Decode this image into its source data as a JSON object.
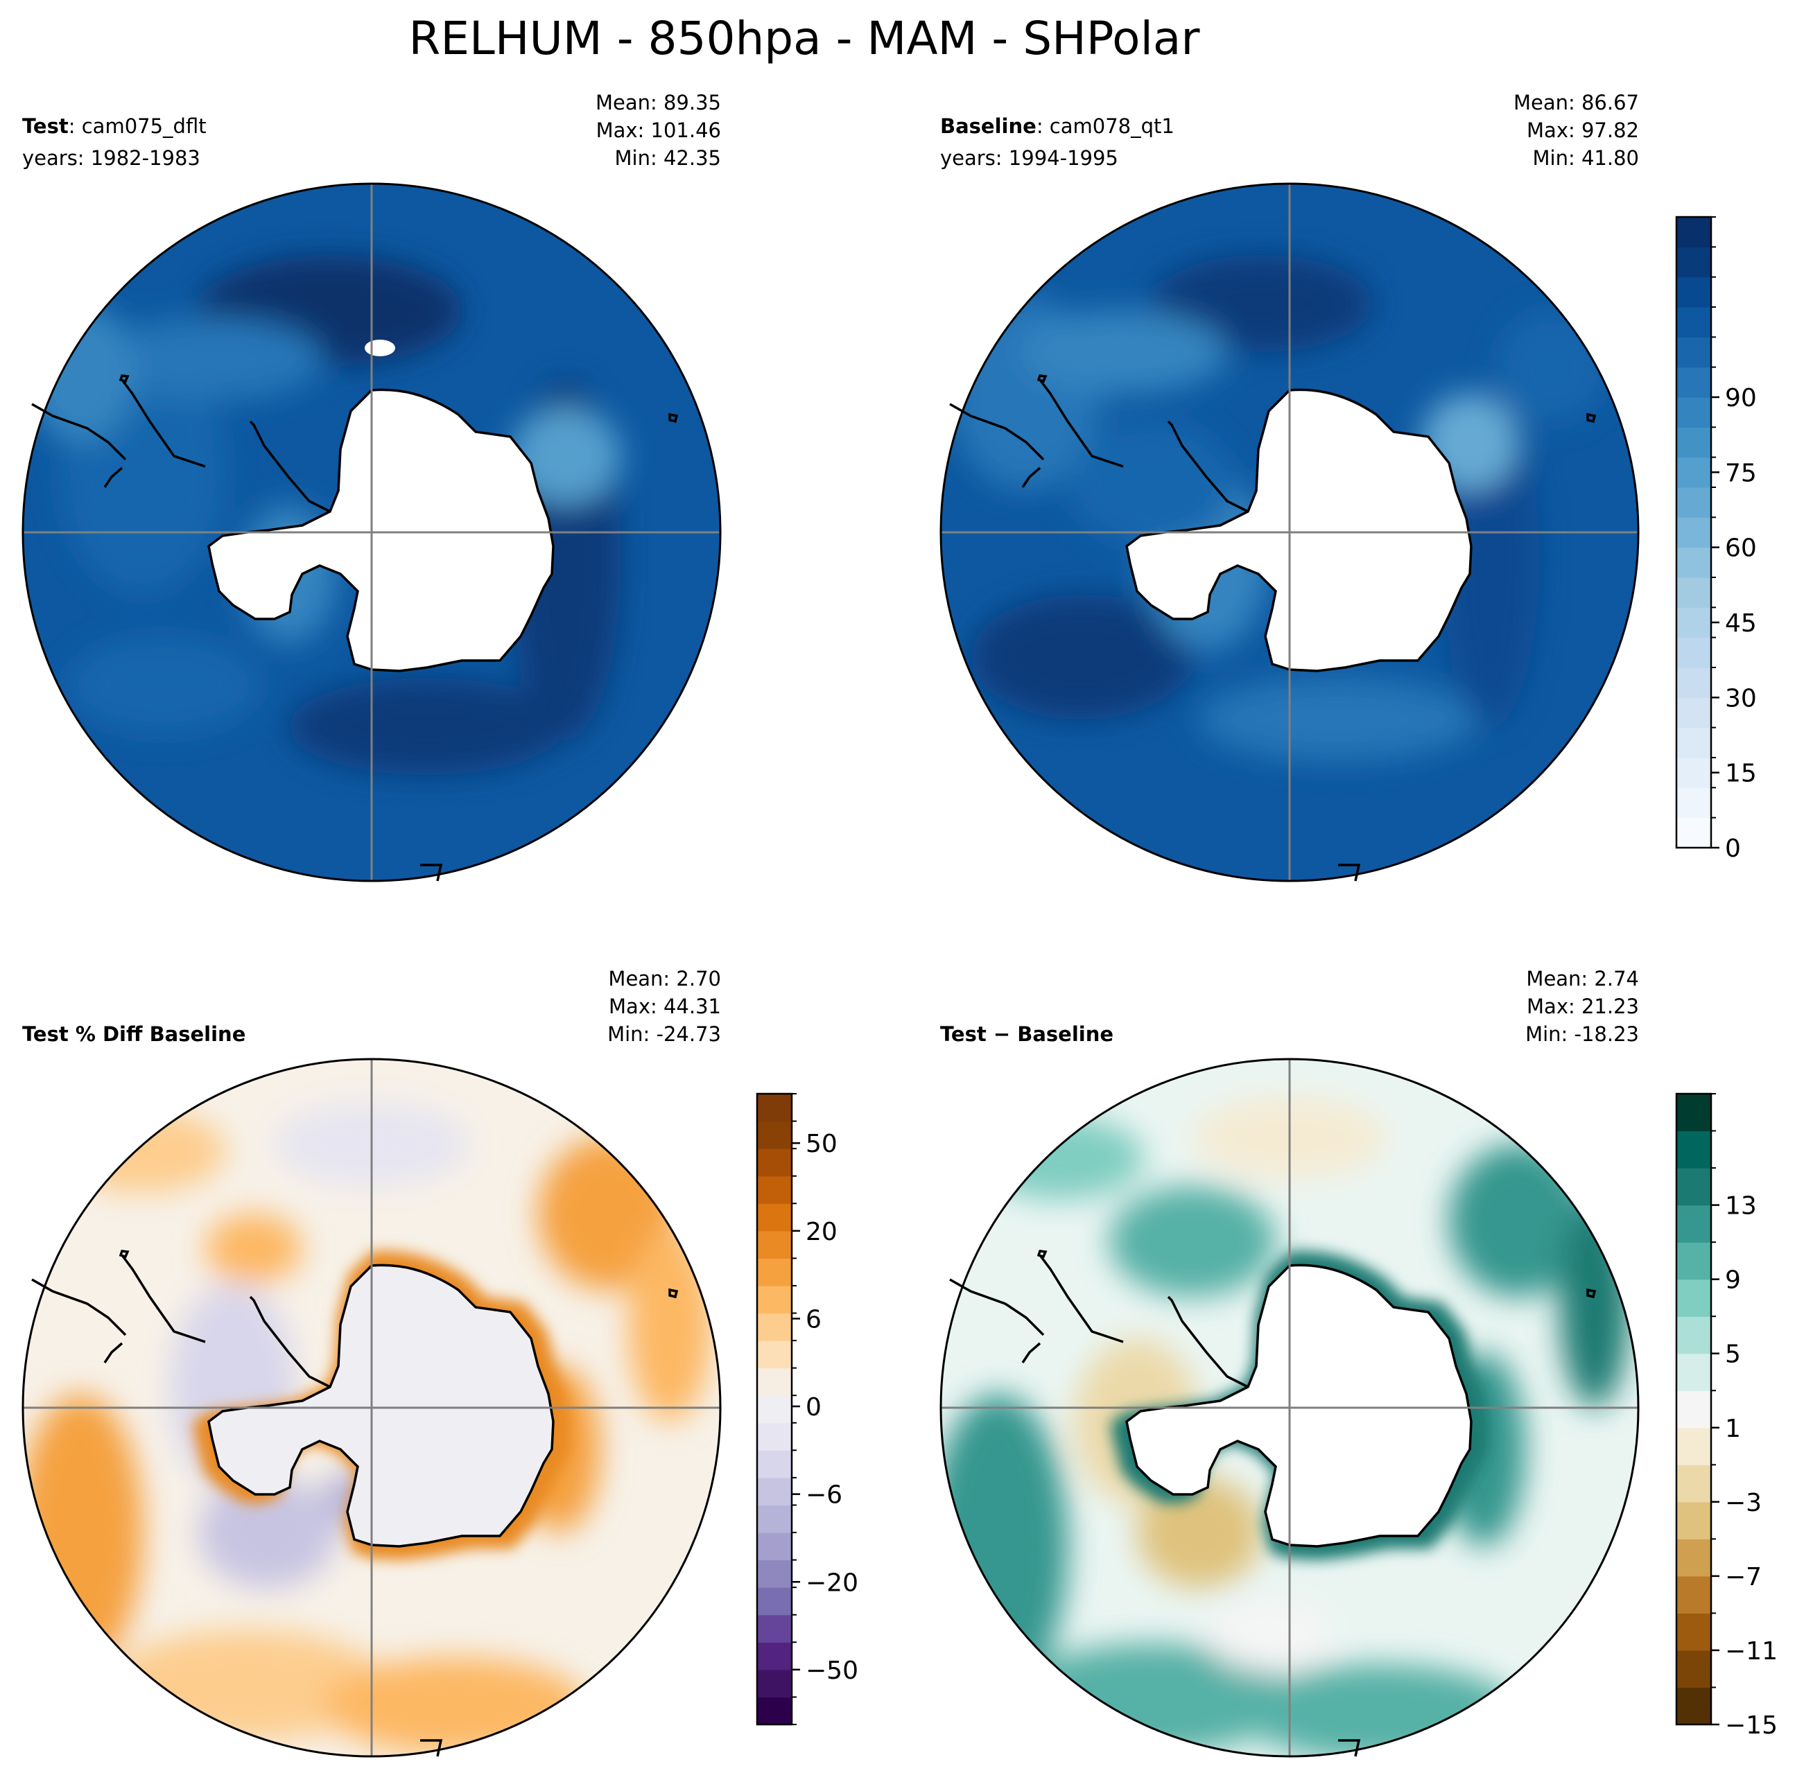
{
  "figure": {
    "title": "RELHUM - 850hpa - MAM - SHPolar"
  },
  "panels": [
    {
      "id": "test",
      "label_bold": "Test",
      "label_rest": ": cam075_dflt",
      "years": "years: 1982-1983",
      "mean": "Mean: 89.35",
      "max": "Max: 101.46",
      "min": "Min: 42.35",
      "palette": "blues"
    },
    {
      "id": "baseline",
      "label_bold": "Baseline",
      "label_rest": ": cam078_qt1",
      "years": "years: 1994-1995",
      "mean": "Mean: 86.67",
      "max": "Max: 97.82",
      "min": "Min: 41.80",
      "palette": "blues"
    },
    {
      "id": "pctdiff",
      "label_bold": "Test % Diff Baseline",
      "label_rest": "",
      "years": "",
      "mean": "Mean:  2.70",
      "max": "Max: 44.31",
      "min": "Min: -24.73",
      "palette": "puor"
    },
    {
      "id": "diff",
      "label_bold": "Test − Baseline",
      "label_rest": "",
      "years": "",
      "mean": "Mean:  2.74",
      "max": "Max: 21.23",
      "min": "Min: -18.23",
      "palette": "brbg"
    }
  ],
  "colorbars": [
    {
      "id": "cb-relhum",
      "ticks": [
        "0",
        "15",
        "30",
        "45",
        "60",
        "75",
        "90"
      ],
      "colors": [
        "#f7fbff",
        "#eef5fc",
        "#e5eff9",
        "#dce9f6",
        "#d3e3f3",
        "#c9ddf0",
        "#bdd7ee",
        "#b0d2e8",
        "#a2cbe2",
        "#8fc2de",
        "#7ab6d9",
        "#66aad4",
        "#549fcd",
        "#4292c6",
        "#3484bf",
        "#2676b8",
        "#1966ad",
        "#0d58a1",
        "#084a91",
        "#083b7a",
        "#08306b"
      ]
    },
    {
      "id": "cb-pctdiff",
      "ticks": [
        "−50",
        "−20",
        "−6",
        "0",
        "6",
        "20",
        "50"
      ],
      "colors": [
        "#2d004b",
        "#3f1364",
        "#52237f",
        "#65459a",
        "#796fb0",
        "#8e88bf",
        "#a49fcd",
        "#b6b3d8",
        "#c7c4e2",
        "#d8d6eb",
        "#e6e5f1",
        "#eeeef3",
        "#f6eee3",
        "#fddfb7",
        "#fdcd8e",
        "#fdb863",
        "#f5a13f",
        "#e98a24",
        "#da7510",
        "#c2600a",
        "#a74e06",
        "#8a4106",
        "#7f3b08"
      ]
    },
    {
      "id": "cb-diff",
      "ticks": [
        "−15",
        "−11",
        "−7",
        "−3",
        "1",
        "5",
        "9",
        "13"
      ],
      "colors": [
        "#543005",
        "#7a4507",
        "#9c5b0f",
        "#b97b29",
        "#cfa050",
        "#dfc27d",
        "#ecd9a9",
        "#f5ebd3",
        "#f5f5f5",
        "#d5eee9",
        "#acdfd7",
        "#80cdc1",
        "#56b1a6",
        "#35978f",
        "#1b7a72",
        "#01665e",
        "#003c30"
      ]
    }
  ]
}
